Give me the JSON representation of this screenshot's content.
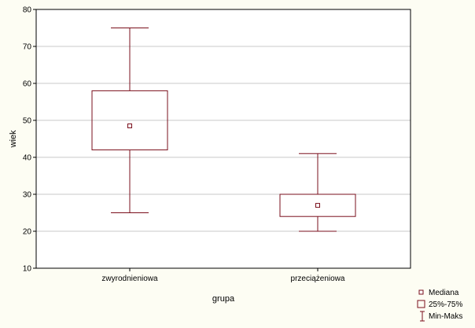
{
  "chart_data": {
    "type": "box",
    "xlabel": "grupa",
    "ylabel": "wiek",
    "ylim": [
      10,
      80
    ],
    "yticks": [
      10,
      20,
      30,
      40,
      50,
      60,
      70,
      80
    ],
    "grid": "horizontal",
    "legend_position": "bottom-right",
    "categories": [
      "zwyrodnieniowa",
      "przeciążeniowa"
    ],
    "boxes": [
      {
        "category": "zwyrodnieniowa",
        "min": 25,
        "q1": 42,
        "median": 48.5,
        "q3": 58,
        "max": 75
      },
      {
        "category": "przeciążeniowa",
        "min": 20,
        "q1": 24,
        "median": 27,
        "q3": 30,
        "max": 41
      }
    ],
    "legend": {
      "median": "Mediana",
      "box": "25%-75%",
      "whisker": "Min-Maks"
    },
    "colors": {
      "box_stroke": "#7a0f1c",
      "grid": "#c8c8c8",
      "plot_bg": "#ffffff",
      "page_bg": "#fdfdf3"
    }
  }
}
